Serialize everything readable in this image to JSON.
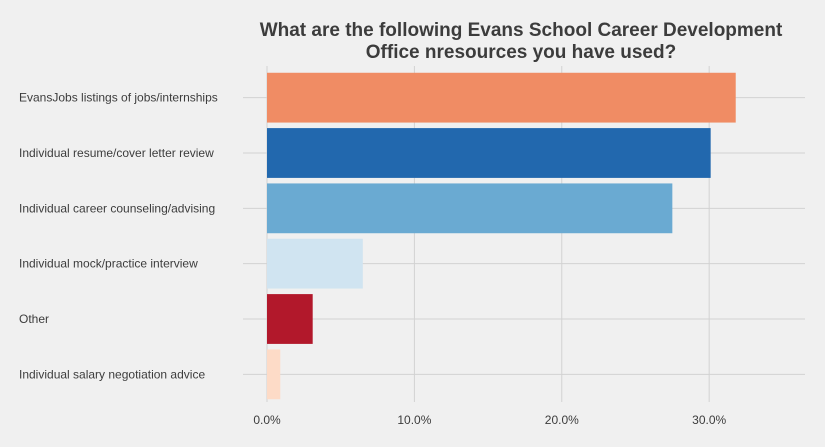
{
  "chart_data": {
    "type": "bar",
    "orientation": "horizontal",
    "title_lines": [
      "What are the following Evans School Career Development",
      "Office nresources you have used?"
    ],
    "xlabel": "",
    "ylabel": "",
    "categories": [
      "EvansJobs listings of jobs/internships",
      "Individual resume/cover letter review",
      "Individual career counseling/advising",
      "Individual mock/practice interview",
      "Other",
      "Individual salary negotiation advice"
    ],
    "values": [
      31.8,
      30.1,
      27.5,
      6.5,
      3.1,
      0.9
    ],
    "bar_colors": [
      "#f08c64",
      "#2268ae",
      "#6aaad2",
      "#d0e4f1",
      "#b2182b",
      "#fddbc7"
    ],
    "xlim": [
      0,
      36.5
    ],
    "x_ticks": [
      0,
      10,
      20,
      30
    ],
    "x_tick_labels": [
      "0.0%",
      "10.0%",
      "20.0%",
      "30.0%"
    ],
    "grid": true,
    "legend": "none"
  }
}
